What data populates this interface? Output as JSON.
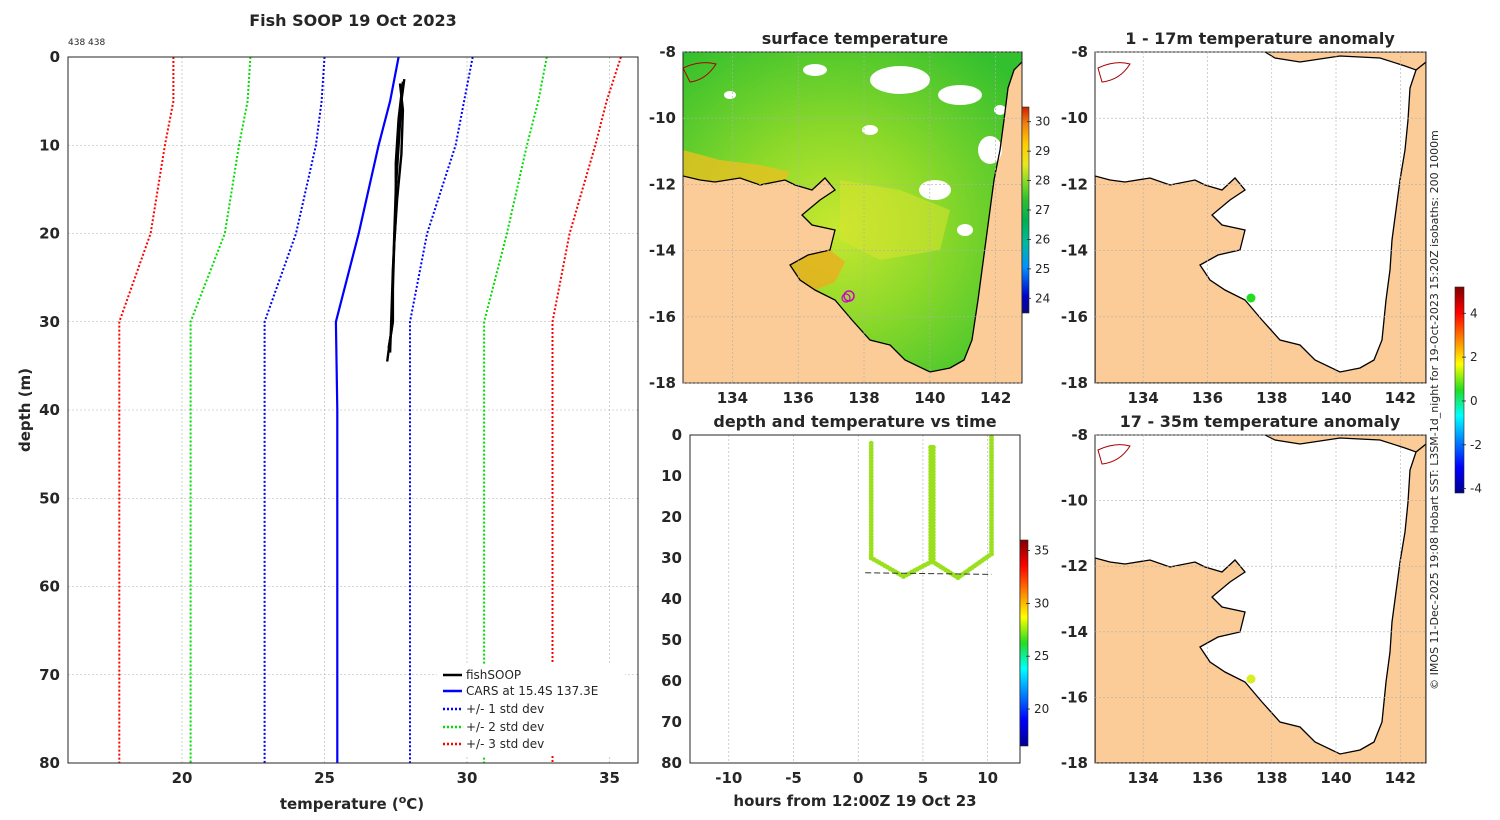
{
  "figure": {
    "main_title": "Fish SOOP 19 Oct 2023",
    "id_label": "438 438",
    "side_note": "© IMOS 11-Dec-2025 19:08 Hobart SST: L3SM-1d_night for 19-Oct-2023 15:20Z isobaths: 200  1000m"
  },
  "chart_data": [
    {
      "id": "profile",
      "type": "line",
      "title": "Fish SOOP 19 Oct 2023",
      "xlabel": "temperature (°C)",
      "ylabel": "depth (m)",
      "xlim": [
        16,
        36
      ],
      "ylim": [
        0,
        80
      ],
      "xticks": [
        "20",
        "25",
        "30",
        "35"
      ],
      "xtick_values": [
        20,
        25,
        30,
        35
      ],
      "yticks": [
        "0",
        "10",
        "20",
        "30",
        "40",
        "50",
        "60",
        "70",
        "80"
      ],
      "ytick_values": [
        0,
        10,
        20,
        30,
        40,
        50,
        60,
        70,
        80
      ],
      "grid": true,
      "legend_position": "bottom-right",
      "legend": [
        "fishSOOP",
        "CARS at 15.4S 137.3E",
        "+/- 1 std dev",
        "+/- 2 std dev",
        "+/- 3 std dev"
      ],
      "depths": [
        0,
        5,
        10,
        20,
        30,
        40,
        80
      ],
      "cars_mean": [
        27.6,
        27.3,
        26.9,
        26.2,
        25.4,
        25.45,
        25.45
      ],
      "std_lines": [
        {
          "name": "+/- 1 std dev",
          "color": "#0000ff",
          "lower": [
            25.0,
            24.9,
            24.7,
            24.0,
            22.9,
            22.9,
            22.9
          ],
          "upper": [
            30.2,
            29.9,
            29.6,
            28.6,
            28.0,
            28.0,
            28.0
          ]
        },
        {
          "name": "+/- 2 std dev",
          "color": "#00dd00",
          "lower": [
            22.4,
            22.3,
            22.0,
            21.5,
            20.3,
            20.3,
            20.3
          ],
          "upper": [
            32.8,
            32.5,
            32.1,
            31.4,
            30.6,
            30.6,
            30.6
          ]
        },
        {
          "name": "+/- 3 std dev",
          "color": "#ff0000",
          "lower": [
            19.7,
            19.7,
            19.4,
            18.9,
            17.8,
            17.8,
            17.8
          ],
          "upper": [
            35.4,
            34.9,
            34.5,
            33.6,
            33.0,
            33.0,
            33.0
          ]
        }
      ],
      "fish_casts": [
        {
          "depth": [
            2.5,
            5,
            10,
            15,
            20,
            25,
            30,
            32,
            34.5
          ],
          "temp": [
            27.8,
            27.7,
            27.6,
            27.5,
            27.45,
            27.4,
            27.4,
            27.3,
            27.2
          ]
        },
        {
          "depth": [
            3.0,
            6,
            11,
            16,
            21,
            26,
            31,
            33
          ],
          "temp": [
            27.65,
            27.75,
            27.7,
            27.55,
            27.45,
            27.4,
            27.35,
            27.25
          ]
        },
        {
          "depth": [
            2.8,
            7,
            12,
            18,
            24,
            29,
            33.5
          ],
          "temp": [
            27.75,
            27.6,
            27.5,
            27.5,
            27.4,
            27.35,
            27.3
          ]
        }
      ]
    },
    {
      "id": "sst_map",
      "type": "heatmap",
      "title": "surface temperature",
      "xlim": [
        132.5,
        142.8
      ],
      "ylim": [
        -18,
        -8
      ],
      "xticks": [
        "134",
        "136",
        "138",
        "140",
        "142"
      ],
      "xtick_values": [
        134,
        136,
        138,
        140,
        142
      ],
      "yticks": [
        "-8",
        "-10",
        "-12",
        "-14",
        "-16",
        "-18"
      ],
      "ytick_values": [
        -8,
        -10,
        -12,
        -14,
        -16,
        -18
      ],
      "colorbar_range": [
        23.5,
        30.5
      ],
      "colorbar_ticks": [
        "24",
        "25",
        "26",
        "27",
        "28",
        "29",
        "30"
      ],
      "colorbar_tick_values": [
        24,
        25,
        26,
        27,
        28,
        29,
        30
      ],
      "marker": {
        "lon": 137.3,
        "lat": -15.4
      }
    },
    {
      "id": "depth_time",
      "type": "scatter",
      "title": "depth and temperature vs time",
      "xlabel": "hours from 12:00Z 19 Oct 23",
      "xlim": [
        -13,
        12.5
      ],
      "ylim": [
        0,
        80
      ],
      "xticks": [
        "-10",
        "-5",
        "0",
        "5",
        "10"
      ],
      "xtick_values": [
        -10,
        -5,
        0,
        5,
        10
      ],
      "yticks": [
        "0",
        "10",
        "20",
        "30",
        "40",
        "50",
        "60",
        "70",
        "80"
      ],
      "ytick_values": [
        0,
        10,
        20,
        30,
        40,
        50,
        60,
        70,
        80
      ],
      "colorbar_range": [
        16.5,
        36
      ],
      "colorbar_ticks": [
        "20",
        "25",
        "30",
        "35"
      ],
      "colorbar_tick_values": [
        20,
        25,
        30,
        35
      ],
      "point_temperature": 27.5,
      "track": [
        [
          1.0,
          2
        ],
        [
          1.0,
          30
        ],
        [
          3.5,
          34.5
        ],
        [
          5.6,
          31
        ],
        [
          5.6,
          3
        ],
        [
          5.8,
          3
        ],
        [
          5.8,
          31
        ],
        [
          7.7,
          34.8
        ],
        [
          10.3,
          29
        ],
        [
          10.3,
          0.5
        ]
      ],
      "max_depth_line": {
        "t0": 1.0,
        "t1": 10.3,
        "d0": 33.6,
        "d1": 34.0
      }
    },
    {
      "id": "anom_1_17",
      "type": "heatmap",
      "title": "1 - 17m temperature anomaly",
      "xlim": [
        132.5,
        142.8
      ],
      "ylim": [
        -18,
        -8
      ],
      "xticks": [
        "134",
        "136",
        "138",
        "140",
        "142"
      ],
      "xtick_values": [
        134,
        136,
        138,
        140,
        142
      ],
      "yticks": [
        "-8",
        "-10",
        "-12",
        "-14",
        "-16",
        "-18"
      ],
      "ytick_values": [
        -8,
        -10,
        -12,
        -14,
        -16,
        -18
      ],
      "point": {
        "lon": 137.3,
        "lat": -15.5,
        "anomaly": 0
      }
    },
    {
      "id": "anom_17_35",
      "type": "heatmap",
      "title": "17 - 35m temperature anomaly",
      "xlim": [
        132.5,
        142.8
      ],
      "ylim": [
        -18,
        -8
      ],
      "xticks": [
        "134",
        "136",
        "138",
        "140",
        "142"
      ],
      "xtick_values": [
        134,
        136,
        138,
        140,
        142
      ],
      "yticks": [
        "-8",
        "-10",
        "-12",
        "-14",
        "-16",
        "-18"
      ],
      "ytick_values": [
        -8,
        -10,
        -12,
        -14,
        -16,
        -18
      ],
      "point": {
        "lon": 137.3,
        "lat": -15.5,
        "anomaly": 1.5
      },
      "colorbar_range": [
        -4.2,
        5.2
      ],
      "colorbar_ticks": [
        "-4",
        "-2",
        "0",
        "2",
        "4"
      ],
      "colorbar_tick_values": [
        -4,
        -2,
        0,
        2,
        4
      ]
    }
  ],
  "colors": {
    "land": "#fbcb98",
    "cars": "#0000ff",
    "fish": "#000000",
    "marker": "#cc00cc",
    "river": "#aa0000"
  }
}
